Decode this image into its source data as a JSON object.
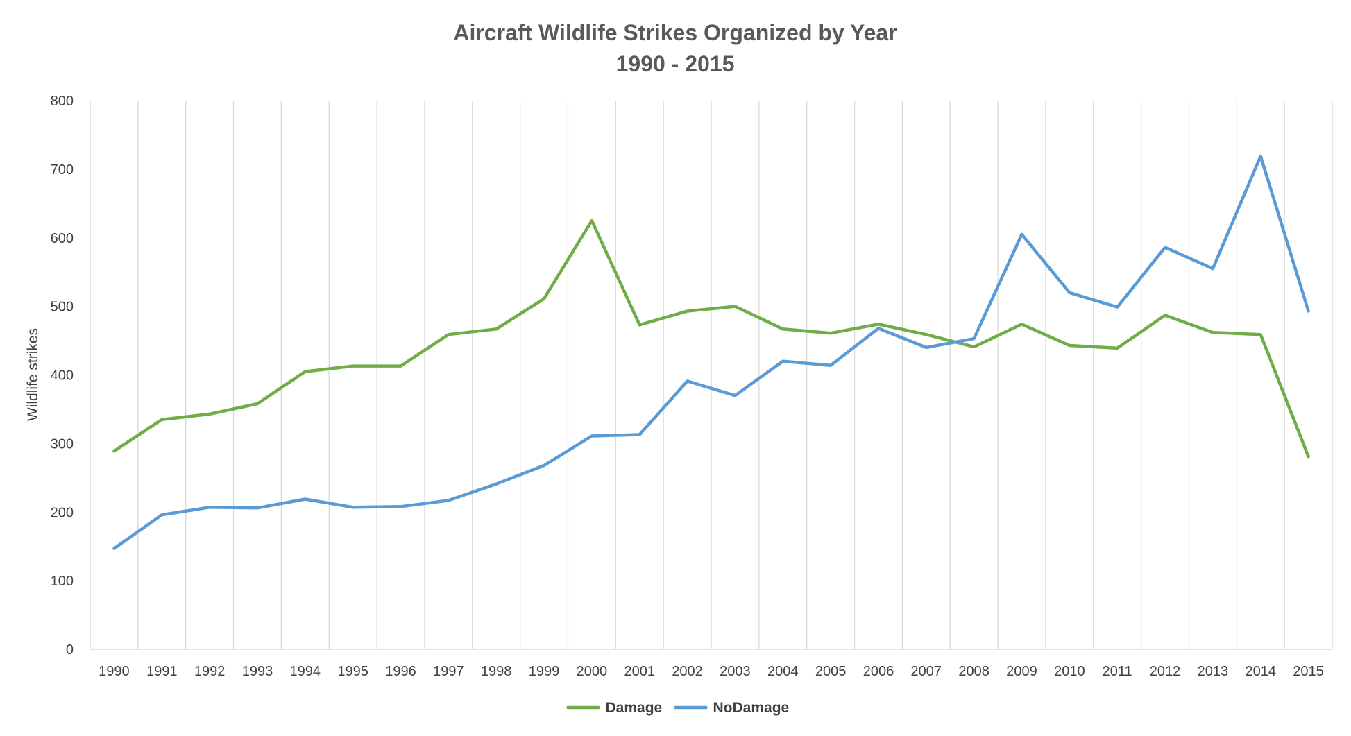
{
  "chart_data": {
    "type": "line",
    "title": "Aircraft Wildlife Strikes Organized by Year",
    "subtitle": "1990 - 2015",
    "xlabel": "",
    "ylabel": "Wildlife strikes",
    "ylim": [
      0,
      800
    ],
    "yticks": [
      "0",
      "100",
      "200",
      "300",
      "400",
      "500",
      "600",
      "700",
      "800"
    ],
    "grid": "vertical",
    "legend_position": "bottom",
    "categories": [
      "1990",
      "1991",
      "1992",
      "1993",
      "1994",
      "1995",
      "1996",
      "1997",
      "1998",
      "1999",
      "2000",
      "2001",
      "2002",
      "2003",
      "2004",
      "2005",
      "2006",
      "2007",
      "2008",
      "2009",
      "2010",
      "2011",
      "2012",
      "2013",
      "2014",
      "2015"
    ],
    "series": [
      {
        "name": "Damage",
        "color": "#70ad47",
        "values": [
          289,
          335,
          343,
          358,
          405,
          413,
          413,
          459,
          467,
          511,
          625,
          473,
          493,
          500,
          467,
          461,
          474,
          459,
          441,
          474,
          443,
          439,
          487,
          462,
          459,
          281
        ]
      },
      {
        "name": "NoDamage",
        "color": "#5b9bd5",
        "values": [
          147,
          196,
          207,
          206,
          219,
          207,
          208,
          217,
          241,
          268,
          311,
          313,
          391,
          370,
          420,
          414,
          468,
          440,
          453,
          605,
          520,
          499,
          586,
          555,
          719,
          493
        ]
      }
    ]
  }
}
